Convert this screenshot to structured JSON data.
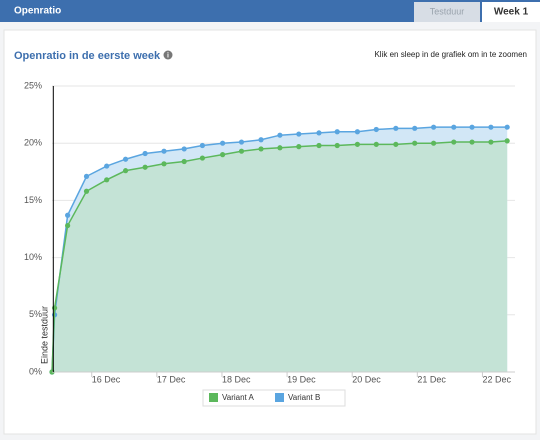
{
  "header": {
    "title": "Openratio",
    "tabs": [
      "Testduur",
      "Week 1"
    ]
  },
  "chart_data": {
    "type": "area",
    "title": "Openratio in de eerste week",
    "zoom_hint": "Klik en sleep in de grafiek om in te zoomen",
    "plot_line": {
      "x": 15.41,
      "label": "Einde testduur"
    },
    "x": [
      15.39,
      15.43,
      15.63,
      15.92,
      16.23,
      16.52,
      16.82,
      17.11,
      17.42,
      17.7,
      18.01,
      18.3,
      18.6,
      18.89,
      19.18,
      19.49,
      19.77,
      20.08,
      20.37,
      20.67,
      20.96,
      21.25,
      21.56,
      21.84,
      22.13,
      22.38
    ],
    "series": [
      {
        "name": "Variant B",
        "color": "#5aa5e0",
        "fill": "#d2e7f6",
        "values": [
          0,
          5.0,
          13.7,
          17.1,
          18.0,
          18.6,
          19.1,
          19.3,
          19.5,
          19.8,
          20.0,
          20.1,
          20.3,
          20.7,
          20.8,
          20.9,
          21.0,
          21.0,
          21.2,
          21.3,
          21.3,
          21.4,
          21.4,
          21.4,
          21.4,
          21.4
        ]
      },
      {
        "name": "Variant A",
        "color": "#5cb85c",
        "fill": "#c4e3d6",
        "values": [
          0,
          5.6,
          12.8,
          15.8,
          16.8,
          17.6,
          17.9,
          18.2,
          18.4,
          18.7,
          19.0,
          19.3,
          19.5,
          19.6,
          19.7,
          19.8,
          19.8,
          19.9,
          19.9,
          19.9,
          20.0,
          20.0,
          20.1,
          20.1,
          20.1,
          20.2
        ]
      }
    ],
    "legend_order": [
      1,
      0
    ],
    "xlim": [
      15.39,
      22.5
    ],
    "xticks": [
      {
        "value": 16,
        "label": "16 Dec"
      },
      {
        "value": 17,
        "label": "17 Dec"
      },
      {
        "value": 18,
        "label": "18 Dec"
      },
      {
        "value": 19,
        "label": "19 Dec"
      },
      {
        "value": 20,
        "label": "20 Dec"
      },
      {
        "value": 21,
        "label": "21 Dec"
      },
      {
        "value": 22,
        "label": "22 Dec"
      }
    ],
    "ylim": [
      0,
      25
    ],
    "yticks": [
      {
        "value": 0,
        "label": "0%"
      },
      {
        "value": 5,
        "label": "5%"
      },
      {
        "value": 10,
        "label": "10%"
      },
      {
        "value": 15,
        "label": "15%"
      },
      {
        "value": 20,
        "label": "20%"
      },
      {
        "value": 25,
        "label": "25%"
      }
    ],
    "grid": true
  }
}
